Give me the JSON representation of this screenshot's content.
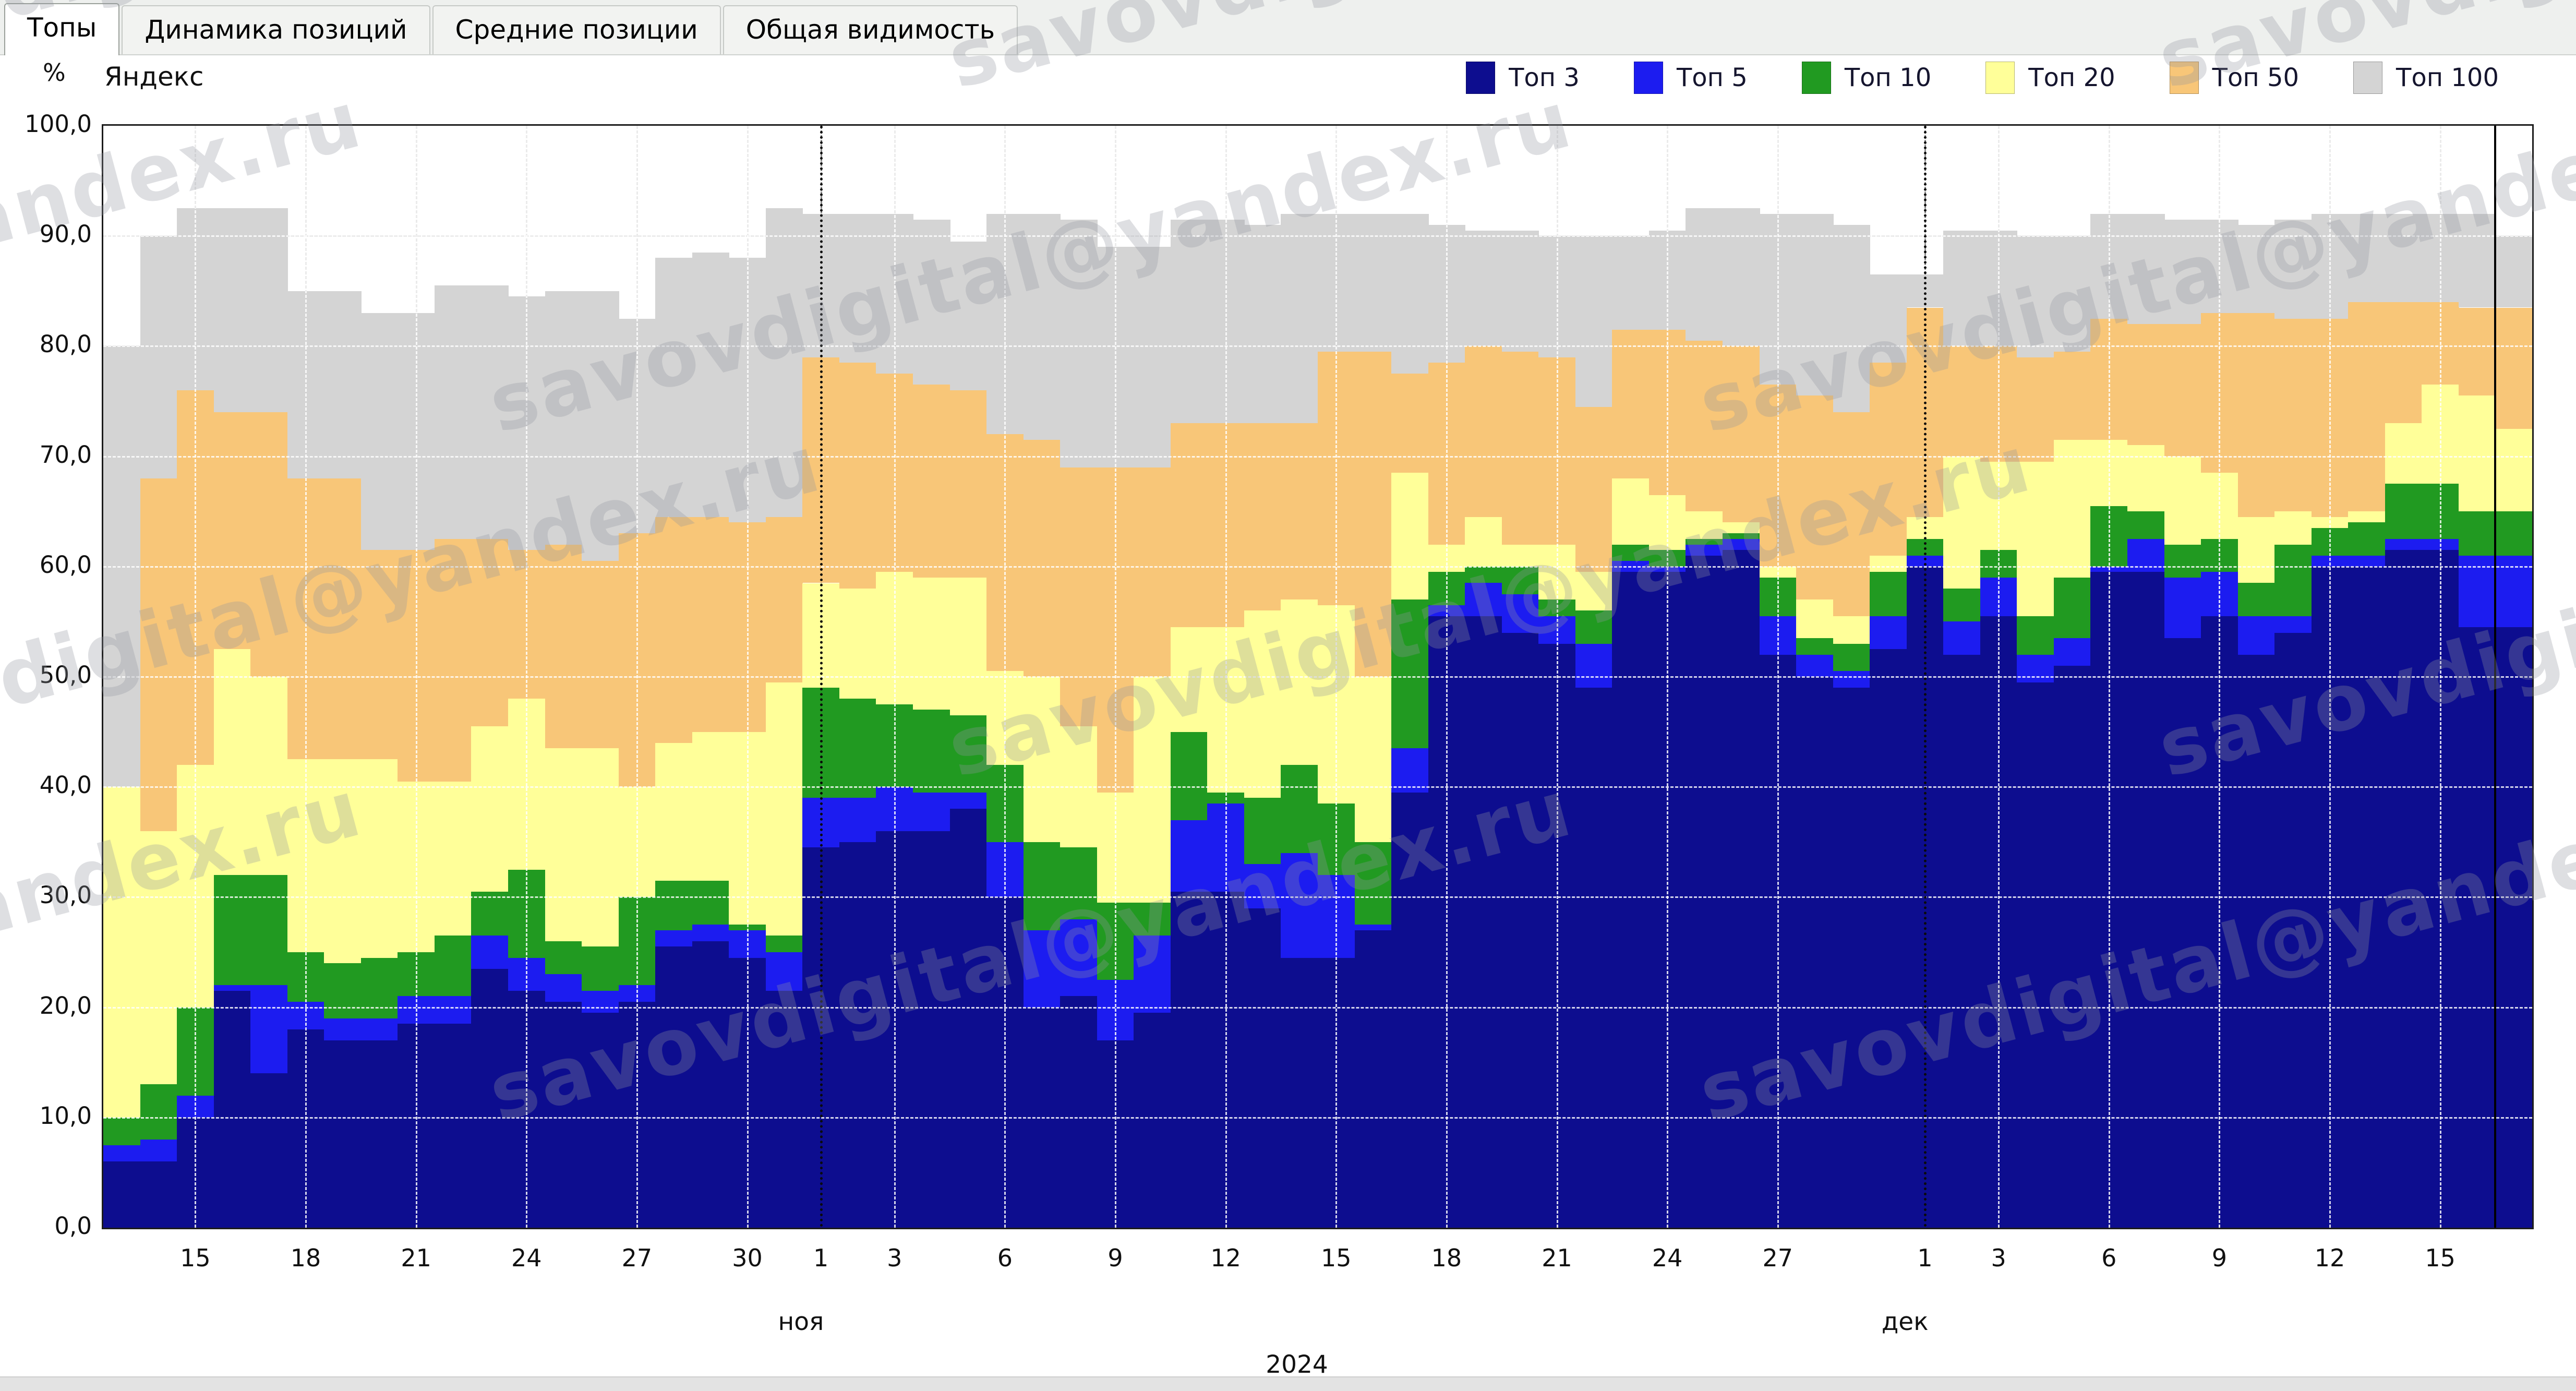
{
  "tabs": [
    {
      "label": "Топы",
      "active": true
    },
    {
      "label": "Динамика позиций",
      "active": false
    },
    {
      "label": "Средние позиции",
      "active": false
    },
    {
      "label": "Общая видимость",
      "active": false
    }
  ],
  "watermark": {
    "text": "savovdigital@yandex.ru"
  },
  "chart_data": {
    "type": "stacked-step-area",
    "title": "Яндекс",
    "ylabel": "%",
    "ylim": [
      0,
      100
    ],
    "grid": true,
    "legend_position": "top-right",
    "year_label": "2024",
    "y_tick_labels": [
      "100,0",
      "90,0",
      "80,0",
      "70,0",
      "60,0",
      "50,0",
      "40,0",
      "30,0",
      "20,0",
      "10,0",
      "0,0"
    ],
    "x_ticks": [
      {
        "label": "15",
        "day": 2
      },
      {
        "label": "18",
        "day": 5
      },
      {
        "label": "21",
        "day": 8
      },
      {
        "label": "24",
        "day": 11
      },
      {
        "label": "27",
        "day": 14
      },
      {
        "label": "30",
        "day": 17
      },
      {
        "label": "1",
        "day": 19
      },
      {
        "label": "3",
        "day": 21
      },
      {
        "label": "6",
        "day": 24
      },
      {
        "label": "9",
        "day": 27
      },
      {
        "label": "12",
        "day": 30
      },
      {
        "label": "15",
        "day": 33
      },
      {
        "label": "18",
        "day": 36
      },
      {
        "label": "21",
        "day": 39
      },
      {
        "label": "24",
        "day": 42
      },
      {
        "label": "27",
        "day": 45
      },
      {
        "label": "1",
        "day": 49
      },
      {
        "label": "3",
        "day": 51
      },
      {
        "label": "6",
        "day": 54
      },
      {
        "label": "9",
        "day": 57
      },
      {
        "label": "12",
        "day": 60
      },
      {
        "label": "15",
        "day": 63
      }
    ],
    "month_labels": [
      {
        "label": "ноя",
        "day": 19
      },
      {
        "label": "дек",
        "day": 49
      }
    ],
    "month_boundary_days": [
      19,
      49
    ],
    "current_day_marker": 65,
    "days_total": 66,
    "series": [
      {
        "name": "Топ 3",
        "color": "#0d0d8f",
        "cumulative": [
          6,
          6,
          10,
          21.5,
          14,
          18,
          17,
          17,
          18.5,
          18.5,
          23.5,
          21.5,
          20.5,
          19.5,
          20.5,
          25.5,
          26,
          24.5,
          21.5,
          34.5,
          35,
          36,
          36,
          38,
          30,
          20,
          21,
          17,
          19.5,
          30.5,
          30.5,
          29,
          24.5,
          24.5,
          27,
          39.5,
          55.5,
          55.5,
          54,
          53,
          49,
          59.5,
          59.5,
          61,
          61.5,
          52,
          50,
          49,
          52.5,
          60,
          52,
          55.5,
          49.5,
          51,
          59.5,
          59.5,
          53.5,
          55.5,
          52,
          54,
          60,
          60,
          61.5,
          61.5,
          54.5,
          54.5
        ]
      },
      {
        "name": "Топ 5",
        "color": "#1c1cf0",
        "cumulative": [
          7.5,
          8,
          12,
          22,
          22,
          20.5,
          19,
          19,
          21,
          21,
          26.5,
          24.5,
          23,
          21.5,
          22,
          27,
          27.5,
          27,
          25,
          39,
          39,
          40,
          39.5,
          39.5,
          35,
          27,
          28,
          22.5,
          26.5,
          37,
          38.5,
          33,
          34,
          32,
          27.5,
          43.5,
          56.5,
          58.5,
          57.5,
          55.5,
          53,
          60.5,
          60,
          62,
          62.5,
          55.5,
          52,
          50.5,
          55.5,
          61,
          55,
          59,
          52,
          53.5,
          60,
          62.5,
          59,
          59.5,
          55.5,
          55.5,
          61,
          61,
          62.5,
          62.5,
          61,
          61
        ]
      },
      {
        "name": "Топ 10",
        "color": "#219a21",
        "cumulative": [
          10,
          13,
          20,
          32,
          32,
          25,
          24,
          24.5,
          25,
          26.5,
          30.5,
          32.5,
          26,
          25.5,
          30,
          31.5,
          31.5,
          27.5,
          26.5,
          49,
          48,
          47.5,
          47,
          46.5,
          42,
          35,
          34.5,
          29.5,
          29.5,
          45,
          39.5,
          39,
          42,
          38.5,
          35,
          57,
          59.5,
          60,
          60,
          57,
          56,
          62,
          61.5,
          62.5,
          63,
          59,
          53.5,
          53,
          59.5,
          62.5,
          58,
          61.5,
          55.5,
          59,
          65.5,
          65,
          62,
          62.5,
          58.5,
          62,
          63.5,
          64,
          67.5,
          67.5,
          65,
          65
        ]
      },
      {
        "name": "Топ 20",
        "color": "#ffff99",
        "cumulative": [
          40,
          36,
          42,
          52.5,
          50,
          42.5,
          42.5,
          42.5,
          40.5,
          40.5,
          45.5,
          48,
          43.5,
          43.5,
          40,
          44,
          45,
          45,
          49.5,
          58.5,
          58,
          59.5,
          59,
          59,
          50.5,
          50,
          45.5,
          39.5,
          50,
          54.5,
          54.5,
          56,
          57,
          56.5,
          50,
          68.5,
          62,
          64.5,
          62,
          62,
          59.5,
          68,
          66.5,
          65,
          64,
          60,
          57,
          55.5,
          61,
          64.5,
          70,
          69.5,
          69.5,
          71.5,
          71.5,
          71,
          70,
          68.5,
          64.5,
          65,
          64.5,
          65,
          73,
          76.5,
          75.5,
          72.5
        ]
      },
      {
        "name": "Топ 50",
        "color": "#f8c678",
        "cumulative": [
          40,
          68,
          76,
          74,
          74,
          68,
          68,
          61.5,
          61.5,
          62.5,
          62.5,
          61.5,
          62,
          60.5,
          63,
          64.5,
          64.5,
          64,
          64.5,
          79,
          78.5,
          77.5,
          76.5,
          76,
          72,
          71.5,
          69,
          69,
          69,
          73,
          73,
          73,
          73,
          79.5,
          79.5,
          77.5,
          78.5,
          80,
          79.5,
          79,
          74.5,
          81.5,
          81.5,
          80.5,
          80,
          76.5,
          75.5,
          74,
          78.5,
          83.5,
          80,
          80,
          79,
          79.5,
          82.5,
          82,
          82,
          83,
          83,
          82.5,
          82.5,
          84,
          84,
          84,
          83.5,
          83.5
        ]
      },
      {
        "name": "Топ 100",
        "color": "#d4d4d4",
        "cumulative": [
          80,
          90,
          92.5,
          92.5,
          92.5,
          85,
          85,
          83,
          83,
          85.5,
          85.5,
          84.5,
          85,
          85,
          82.5,
          88,
          88.5,
          88,
          92.5,
          92,
          92,
          92,
          91.5,
          89.5,
          92,
          92,
          91.5,
          89,
          89,
          91.5,
          91.5,
          91,
          92,
          92,
          92,
          92,
          91,
          90.5,
          90.5,
          90,
          90,
          90,
          90.5,
          92.5,
          92.5,
          92,
          92,
          91,
          86.5,
          86.5,
          90.5,
          90.5,
          90,
          90,
          92,
          92,
          91.5,
          91.5,
          91,
          91.5,
          92,
          92,
          92,
          92,
          92,
          90
        ]
      }
    ]
  }
}
